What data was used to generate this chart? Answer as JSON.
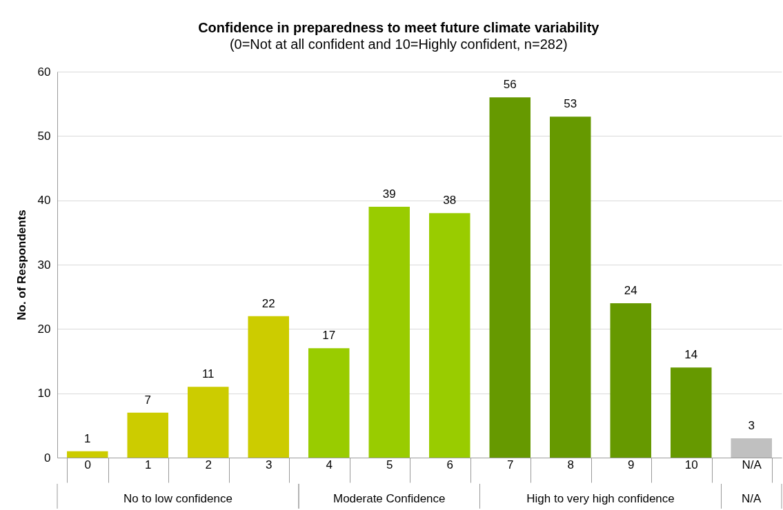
{
  "chart_data": {
    "type": "bar",
    "title": "Confidence in preparedness to meet future climate variability",
    "subtitle": "(0=Not at all confident and 10=Highly confident, n=282)",
    "ylabel": "No. of Respondents",
    "categories": [
      "0",
      "1",
      "2",
      "3",
      "4",
      "5",
      "6",
      "7",
      "8",
      "9",
      "10",
      "N/A"
    ],
    "values": [
      1,
      7,
      11,
      22,
      17,
      39,
      38,
      56,
      53,
      24,
      14,
      3
    ],
    "colors": [
      "#cccc00",
      "#cccc00",
      "#cccc00",
      "#cccc00",
      "#99cc00",
      "#99cc00",
      "#99cc00",
      "#669900",
      "#669900",
      "#669900",
      "#669900",
      "#c0c0c0"
    ],
    "ylim": [
      0,
      60
    ],
    "yticks": [
      0,
      10,
      20,
      30,
      40,
      50,
      60
    ],
    "grid": "y",
    "data_labels": true,
    "annotations": [
      "No to low confidence",
      "Moderate Confidence",
      "High to very high confidence",
      "N/A"
    ]
  }
}
